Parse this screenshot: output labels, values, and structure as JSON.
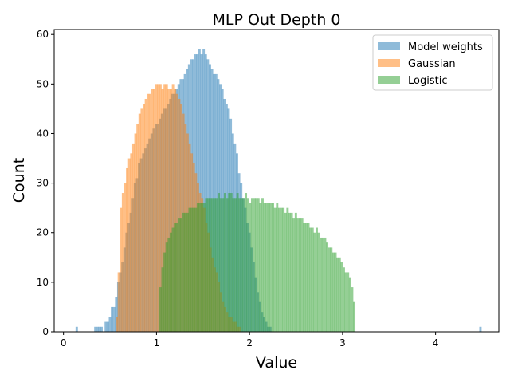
{
  "chart_data": {
    "type": "histogram",
    "title": "MLP Out Depth 0",
    "xlabel": "Value",
    "ylabel": "Count",
    "xlim": [
      -0.1,
      4.68
    ],
    "ylim": [
      0,
      61
    ],
    "xticks": [
      0,
      1,
      2,
      3,
      4
    ],
    "yticks": [
      0,
      10,
      20,
      30,
      40,
      50,
      60
    ],
    "grid": false,
    "legend_position": "top-right",
    "bin_width": 0.0224,
    "series": [
      {
        "name": "Model weights",
        "color": "#1f77b4",
        "alpha": 0.5,
        "start": 0.33,
        "counts": [
          1,
          1,
          1,
          1,
          0,
          2,
          2,
          3,
          5,
          5,
          7,
          10,
          12,
          14,
          17,
          20,
          22,
          24,
          27,
          30,
          31,
          34,
          35,
          36,
          37,
          38,
          39,
          40,
          41,
          42,
          42,
          43,
          44,
          45,
          45,
          46,
          47,
          48,
          48,
          49,
          50,
          51,
          51,
          52,
          53,
          54,
          55,
          55,
          56,
          56,
          57,
          56,
          57,
          56,
          55,
          54,
          53,
          52,
          52,
          51,
          50,
          49,
          47,
          46,
          45,
          43,
          40,
          38,
          36,
          32,
          30,
          27,
          25,
          22,
          20,
          17,
          14,
          11,
          8,
          6,
          4,
          3,
          2,
          1,
          1
        ],
        "outliers": [
          {
            "x": 0.13,
            "count": 1
          },
          {
            "x": 4.47,
            "count": 1
          }
        ]
      },
      {
        "name": "Gaussian",
        "color": "#ff7f0e",
        "alpha": 0.5,
        "start": 0.56,
        "counts": [
          3,
          12,
          25,
          28,
          30,
          33,
          35,
          36,
          38,
          40,
          42,
          44,
          45,
          46,
          47,
          48,
          48,
          49,
          49,
          50,
          50,
          50,
          49,
          50,
          50,
          49,
          49,
          50,
          49,
          48,
          47,
          46,
          44,
          42,
          40,
          38,
          36,
          34,
          32,
          30,
          28,
          27,
          25,
          22,
          20,
          17,
          15,
          13,
          12,
          10,
          8,
          6,
          5,
          4,
          3,
          3,
          2,
          2,
          1,
          1
        ]
      },
      {
        "name": "Logistic",
        "color": "#2ca02c",
        "alpha": 0.5,
        "start": 1.03,
        "counts": [
          9,
          13,
          16,
          18,
          19,
          20,
          21,
          22,
          22,
          23,
          23,
          24,
          24,
          24,
          25,
          25,
          25,
          25,
          26,
          26,
          26,
          26,
          27,
          27,
          27,
          27,
          27,
          27,
          28,
          27,
          27,
          28,
          27,
          28,
          28,
          27,
          27,
          28,
          27,
          27,
          27,
          28,
          27,
          26,
          27,
          27,
          27,
          27,
          26,
          27,
          26,
          26,
          26,
          26,
          26,
          25,
          26,
          25,
          25,
          25,
          24,
          25,
          24,
          24,
          23,
          24,
          23,
          23,
          23,
          22,
          22,
          22,
          21,
          21,
          20,
          21,
          20,
          19,
          19,
          19,
          18,
          17,
          17,
          16,
          16,
          15,
          15,
          14,
          13,
          12,
          12,
          11,
          9,
          6
        ]
      }
    ]
  }
}
